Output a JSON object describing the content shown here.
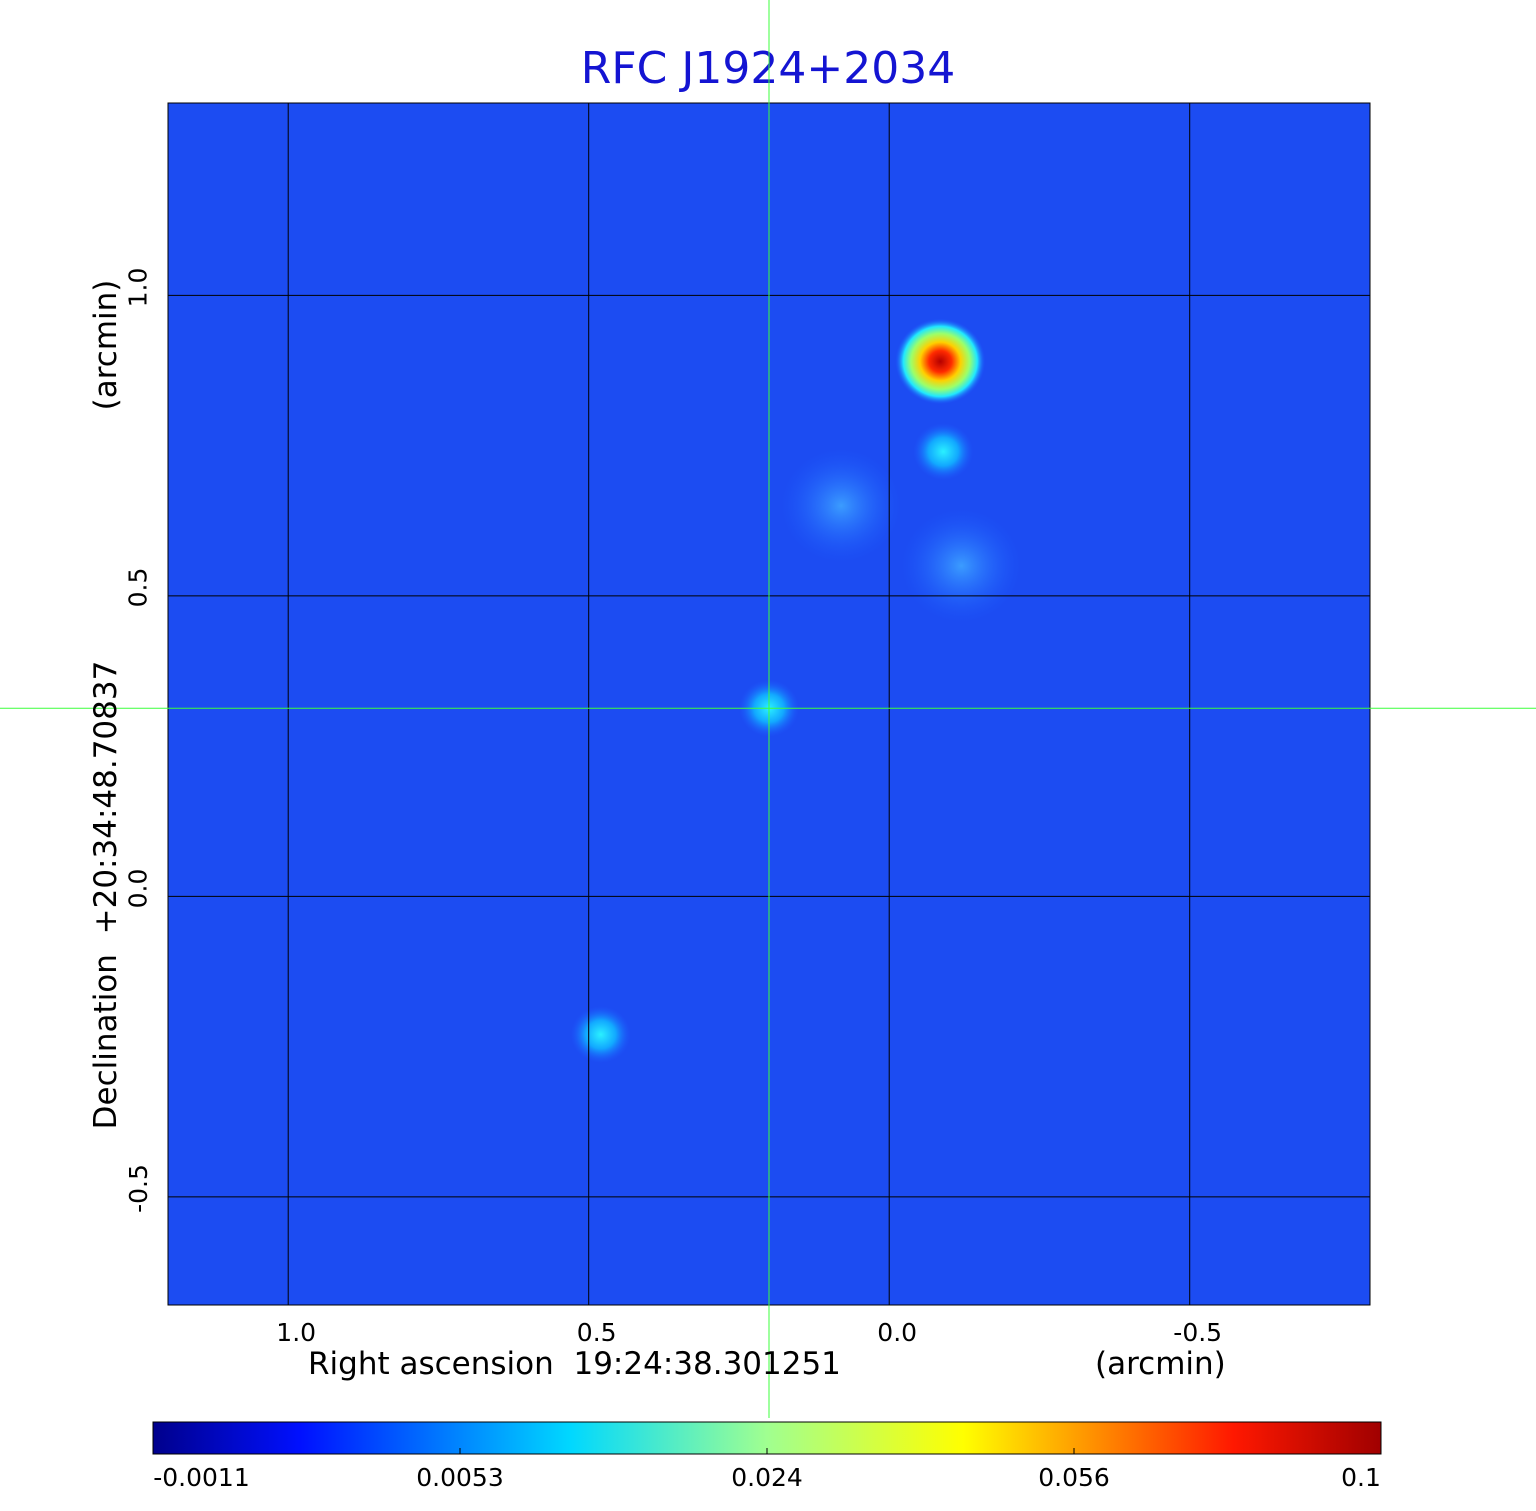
{
  "colors": {
    "title": "#1414d2",
    "crosshair": "#3cff3c",
    "grid": "#000000"
  },
  "chart_data": {
    "type": "heatmap",
    "title": "RFC J1924+2034",
    "xlabel": "Right ascension  19:24:38.301251",
    "xunit": "(arcmin)",
    "ylabel": "Declination  +20:34:48.70837",
    "yunit": "(arcmin)",
    "xlim": [
      1.2,
      -0.8
    ],
    "ylim": [
      -0.68,
      1.32
    ],
    "x_ticks": [
      {
        "value": 1.0,
        "label": "1.0"
      },
      {
        "value": 0.5,
        "label": "0.5"
      },
      {
        "value": 0.0,
        "label": "0.0"
      },
      {
        "value": -0.5,
        "label": "-0.5"
      }
    ],
    "y_ticks": [
      {
        "value": 1.0,
        "label": "1.0"
      },
      {
        "value": 0.5,
        "label": "0.5"
      },
      {
        "value": 0.0,
        "label": "0.0"
      },
      {
        "value": -0.5,
        "label": "-0.5"
      }
    ],
    "grid": true,
    "crosshair": {
      "x": 0.2,
      "y": 0.313
    },
    "colormap": "jet",
    "colorbar": {
      "range": [
        -0.0011,
        0.1
      ],
      "ticks": [
        "-0.0011",
        "0.0053",
        "0.024",
        "0.056",
        "0.1"
      ]
    },
    "sources": [
      {
        "x": -0.085,
        "y": 0.89,
        "peak": 0.1
      },
      {
        "x": -0.09,
        "y": 0.74,
        "peak": 0.012
      },
      {
        "x": 0.2,
        "y": 0.313,
        "peak": 0.011
      },
      {
        "x": 0.48,
        "y": -0.23,
        "peak": 0.007
      },
      {
        "x": -0.12,
        "y": 0.55,
        "peak": 0.004
      },
      {
        "x": 0.08,
        "y": 0.65,
        "peak": 0.003
      }
    ]
  }
}
